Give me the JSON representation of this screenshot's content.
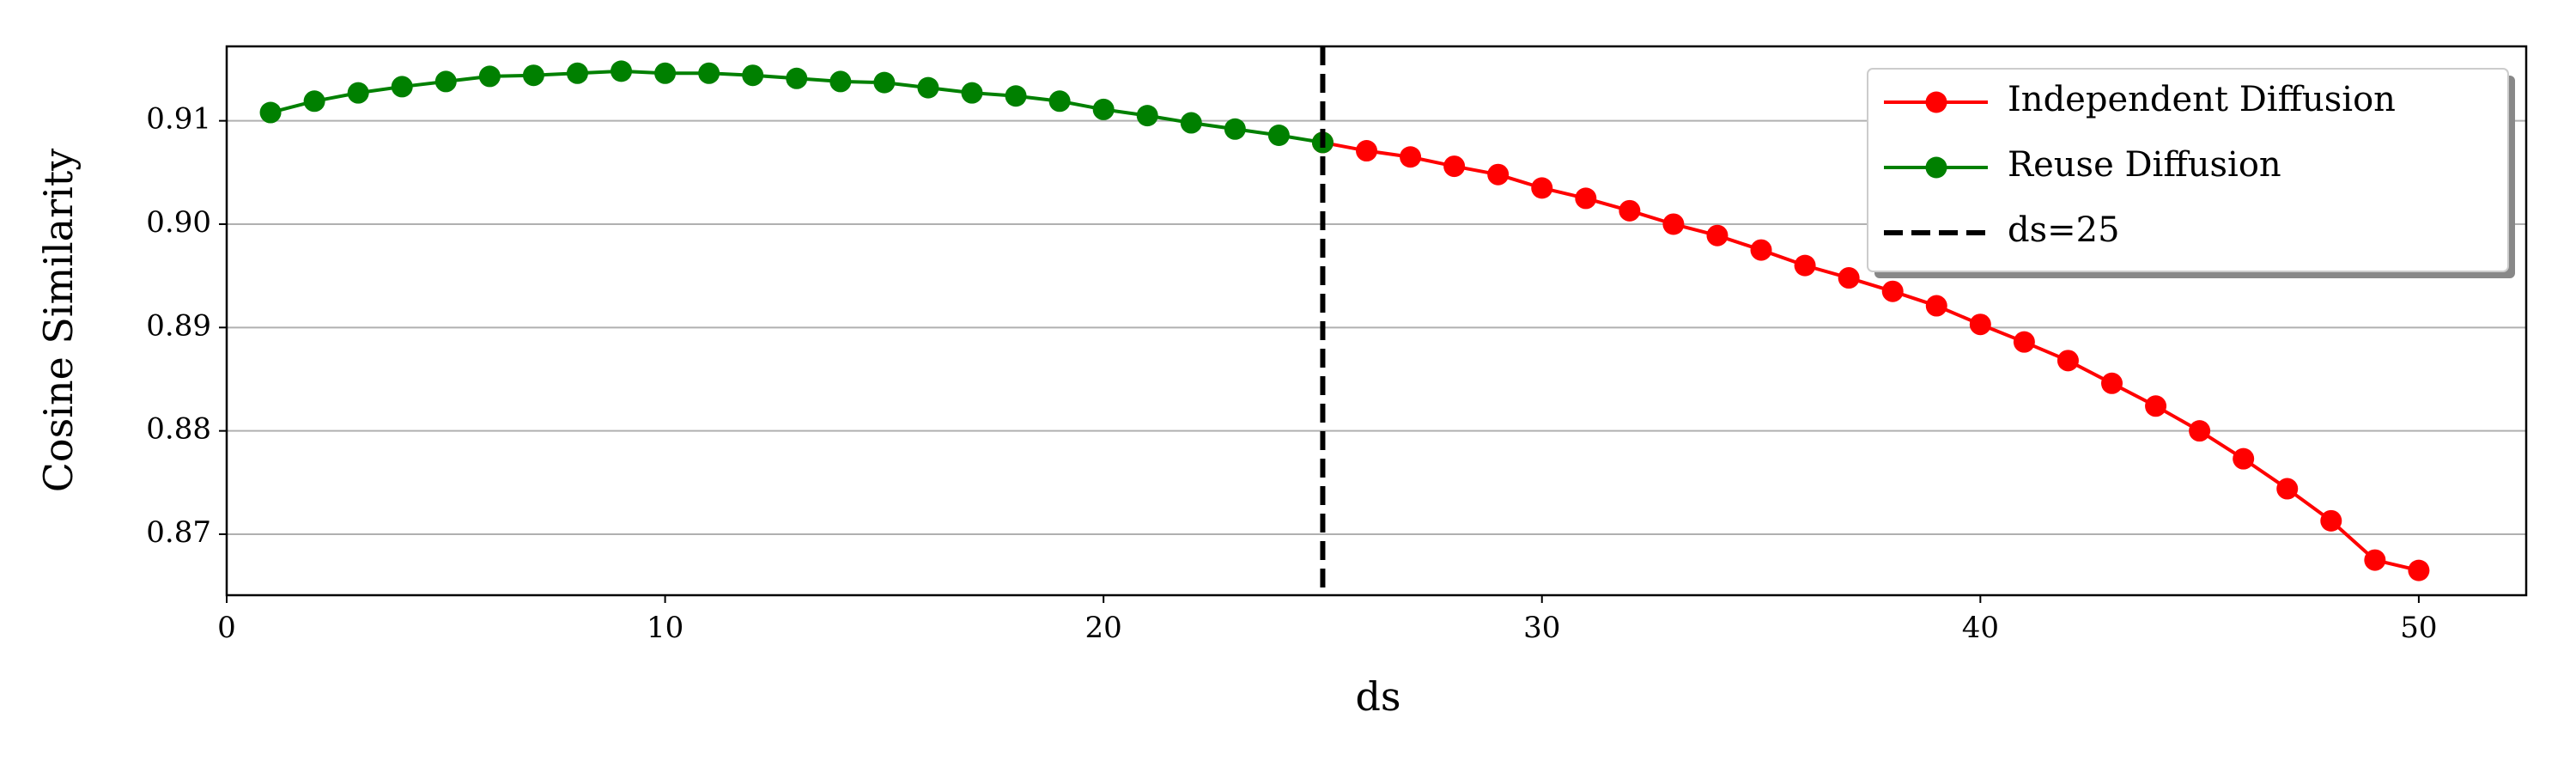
{
  "chart_data": {
    "type": "line",
    "xlabel": "ds",
    "ylabel": "Cosine Similarity",
    "xlim": [
      0,
      52.45
    ],
    "ylim": [
      0.8641,
      0.9172
    ],
    "xticks": [
      0,
      10,
      20,
      30,
      40,
      50
    ],
    "yticks": [
      0.87,
      0.88,
      0.89,
      {
        "value": 0.9,
        "label": "0.90"
      },
      0.91
    ],
    "grid": "y",
    "legend": "upper right",
    "series": [
      {
        "name": "Independent Diffusion",
        "color": "#ff0000",
        "x": [
          25,
          26,
          27,
          28,
          29,
          30,
          31,
          32,
          33,
          34,
          35,
          36,
          37,
          38,
          39,
          40,
          41,
          42,
          43,
          44,
          45,
          46,
          47,
          48,
          49,
          50
        ],
        "values": [
          0.9079,
          0.9071,
          0.9065,
          0.9056,
          0.9048,
          0.9035,
          0.9025,
          0.9013,
          0.9,
          0.8989,
          0.8975,
          0.896,
          0.8948,
          0.8935,
          0.8921,
          0.8903,
          0.8886,
          0.8868,
          0.8846,
          0.8824,
          0.88,
          0.8773,
          0.8744,
          0.8713,
          0.8675,
          0.8665
        ]
      },
      {
        "name": "Reuse Diffusion",
        "color": "#008000",
        "x": [
          1,
          2,
          3,
          4,
          5,
          6,
          7,
          8,
          9,
          10,
          11,
          12,
          13,
          14,
          15,
          16,
          17,
          18,
          19,
          20,
          21,
          22,
          23,
          24,
          25
        ],
        "values": [
          0.9108,
          0.9119,
          0.9127,
          0.9133,
          0.9138,
          0.9143,
          0.9144,
          0.9146,
          0.9148,
          0.9146,
          0.9146,
          0.9144,
          0.9141,
          0.9138,
          0.9137,
          0.9132,
          0.9127,
          0.9124,
          0.9119,
          0.9111,
          0.9105,
          0.9098,
          0.9092,
          0.9086,
          0.9079
        ]
      }
    ],
    "vline": {
      "x": 25,
      "label": "ds=25",
      "color": "#000000"
    }
  }
}
